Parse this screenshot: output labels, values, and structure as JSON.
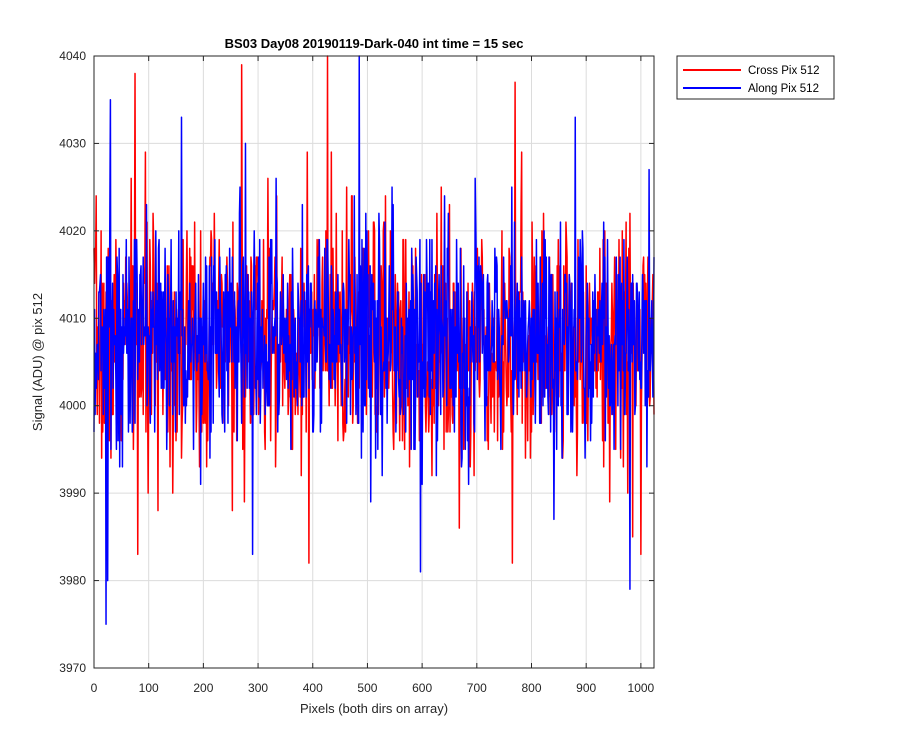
{
  "chart_data": {
    "type": "line",
    "title": "BS03 Day08 20190119-Dark-040 int time = 15 sec",
    "xlabel": "Pixels (both dirs on array)",
    "ylabel": "Signal (ADU) @ pix 512",
    "xlim": [
      0,
      1024
    ],
    "ylim": [
      3970,
      4040
    ],
    "xticks": [
      0,
      100,
      200,
      300,
      400,
      500,
      600,
      700,
      800,
      900,
      1000
    ],
    "yticks": [
      3970,
      3980,
      3990,
      4000,
      4010,
      4020,
      4030,
      4040
    ],
    "grid": true,
    "legend_position": "outside-top-right",
    "colors": {
      "background": "#ffffff",
      "axes": "#262626",
      "grid": "#dcdcdc"
    },
    "series": [
      {
        "name": "Cross Pix 512",
        "color": "#ff0000",
        "seed": 7,
        "mean": 4007.5,
        "std": 7.0,
        "extremes": [
          [
            75,
            4038
          ],
          [
            80,
            3983
          ],
          [
            270,
            4039
          ],
          [
            393,
            3982
          ],
          [
            427,
            4040
          ],
          [
            765,
            3982
          ],
          [
            770,
            4037
          ],
          [
            985,
            3985
          ],
          [
            1000,
            3983
          ]
        ]
      },
      {
        "name": "Along Pix 512",
        "color": "#0000ff",
        "seed": 13,
        "mean": 4008.0,
        "std": 6.5,
        "extremes": [
          [
            22,
            3975
          ],
          [
            25,
            3980
          ],
          [
            30,
            4035
          ],
          [
            160,
            4033
          ],
          [
            290,
            3983
          ],
          [
            485,
            4040
          ],
          [
            597,
            3981
          ],
          [
            880,
            4033
          ],
          [
            980,
            3979
          ],
          [
            1015,
            4027
          ]
        ]
      }
    ]
  }
}
